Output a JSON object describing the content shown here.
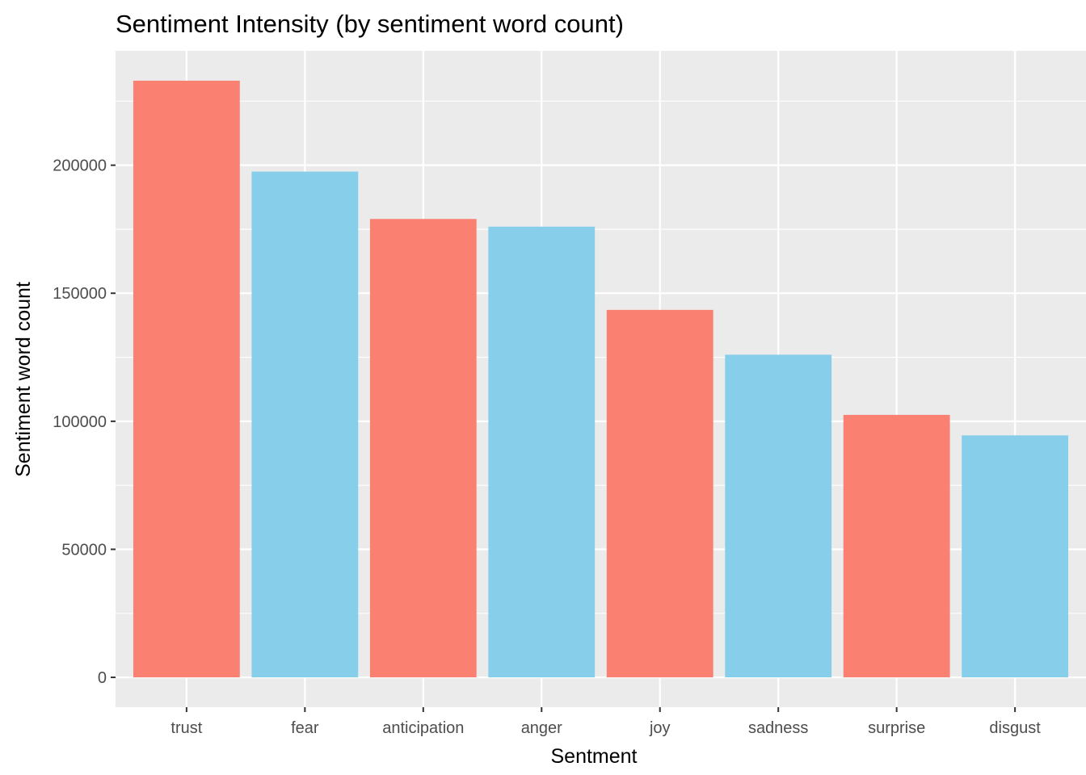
{
  "chart_data": {
    "type": "bar",
    "title": "Sentiment Intensity (by sentiment word count)",
    "xlabel": "Sentment",
    "ylabel": "Sentiment word count",
    "categories": [
      "trust",
      "fear",
      "anticipation",
      "anger",
      "joy",
      "sadness",
      "surprise",
      "disgust"
    ],
    "values": [
      233000,
      197500,
      179000,
      176000,
      143500,
      126000,
      102500,
      94500
    ],
    "bar_colors": [
      "#FA8072",
      "#87CEEB",
      "#FA8072",
      "#87CEEB",
      "#FA8072",
      "#87CEEB",
      "#FA8072",
      "#87CEEB"
    ],
    "yticks": [
      0,
      50000,
      100000,
      150000,
      200000
    ],
    "ytick_labels": [
      "0",
      "50000",
      "100000",
      "150000",
      "200000"
    ],
    "ylim": [
      -11650,
      244650
    ],
    "grid": true,
    "legend": "none",
    "panel_background": "#EBEBEB",
    "grid_color": "#FFFFFF"
  }
}
